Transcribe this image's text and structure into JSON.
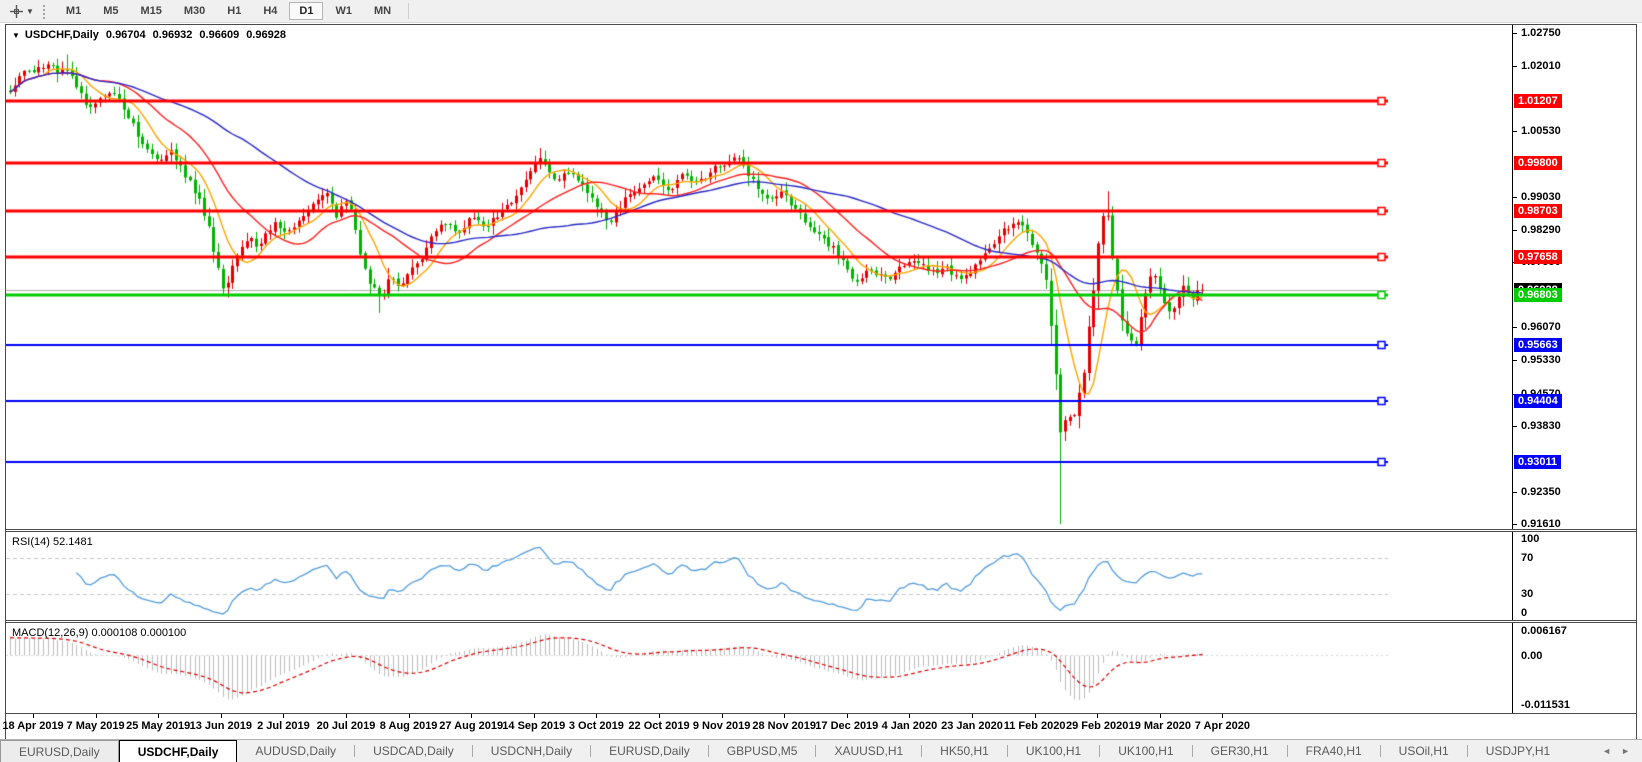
{
  "toolbar": {
    "timeframes": [
      "M1",
      "M5",
      "M15",
      "M30",
      "H1",
      "H4",
      "D1",
      "W1",
      "MN"
    ],
    "active_timeframe": "D1"
  },
  "chart": {
    "symbol": "USDCHF,Daily",
    "open": "0.96704",
    "high": "0.96932",
    "low": "0.96609",
    "close": "0.96928",
    "y_axis_labels": [
      {
        "text": "1.02750",
        "price": 1.0275
      },
      {
        "text": "1.02010",
        "price": 1.0201
      },
      {
        "text": "1.00530",
        "price": 1.0053
      },
      {
        "text": "0.99030",
        "price": 0.9903
      },
      {
        "text": "0.98290",
        "price": 0.9829
      },
      {
        "text": "0.97550",
        "price": 0.9755
      },
      {
        "text": "0.96070",
        "price": 0.9607
      },
      {
        "text": "0.95330",
        "price": 0.9533
      },
      {
        "text": "0.94570",
        "price": 0.9457
      },
      {
        "text": "0.93830",
        "price": 0.9383
      },
      {
        "text": "0.92350",
        "price": 0.9235
      },
      {
        "text": "0.91610",
        "price": 0.9161
      }
    ],
    "hlines": [
      {
        "label": "1.01207",
        "price": 1.01207,
        "color": "#ff0000",
        "width": 3
      },
      {
        "label": "0.99800",
        "price": 0.998,
        "color": "#ff0000",
        "width": 3
      },
      {
        "label": "0.98703",
        "price": 0.98703,
        "color": "#ff0000",
        "width": 3
      },
      {
        "label": "0.97658",
        "price": 0.97658,
        "color": "#ff0000",
        "width": 3
      },
      {
        "label": "0.96803",
        "price": 0.96803,
        "color": "#00cc00",
        "width": 3
      },
      {
        "label": "0.95663",
        "price": 0.95663,
        "color": "#0000ff",
        "width": 2
      },
      {
        "label": "0.94404",
        "price": 0.94404,
        "color": "#0000ff",
        "width": 2
      },
      {
        "label": "0.93011",
        "price": 0.93011,
        "color": "#0000ff",
        "width": 2
      }
    ],
    "bid": {
      "label": "0.96928",
      "price": 0.96928,
      "line_color": "#b0b0b0",
      "box_color": "#000000"
    },
    "dates": [
      "18 Apr 2019",
      "7 May 2019",
      "25 May 2019",
      "13 Jun 2019",
      "2 Jul 2019",
      "20 Jul 2019",
      "8 Aug 2019",
      "27 Aug 2019",
      "14 Sep 2019",
      "3 Oct 2019",
      "22 Oct 2019",
      "9 Nov 2019",
      "28 Nov 2019",
      "17 Dec 2019",
      "4 Jan 2020",
      "23 Jan 2020",
      "11 Feb 2020",
      "29 Feb 2020",
      "19 Mar 2020",
      "7 Apr 2020"
    ]
  },
  "rsi": {
    "label": "RSI(14) 52.1481",
    "axis_labels": [
      "100",
      "70",
      "30",
      "0"
    ],
    "levels": [
      70,
      30
    ],
    "line_color": "#559ddb",
    "current": 52.1481
  },
  "macd": {
    "label": "MACD(12,26,9) 0.000108 0.000100",
    "axis_top": "0.006167",
    "axis_zero": "0.00",
    "axis_bottom": "-0.011531",
    "hist_color": "#bdbdbd",
    "signal_color": "#e00000",
    "range_top": 0.0068,
    "range_bottom": -0.0122
  },
  "tabs": {
    "items": [
      "EURUSD,Daily",
      "USDCHF,Daily",
      "AUDUSD,Daily",
      "USDCAD,Daily",
      "USDCNH,Daily",
      "EURUSD,Daily",
      "GBPUSD,M5",
      "XAUUSD,H1",
      "HK50,H1",
      "UK100,H1",
      "UK100,H1",
      "GER30,H1",
      "FRA40,H1",
      "USOil,H1",
      "USDJPY,H1"
    ],
    "active_index": 1
  },
  "chart_data": {
    "type": "candlestick",
    "symbol": "USDCHF",
    "timeframe": "Daily",
    "bar_count": 253,
    "seed": 42,
    "noise": 0.0011,
    "wick": 0.0014,
    "last_close": 0.96928,
    "price_top": 1.0293,
    "price_bottom": 0.915,
    "up_color": "#e80000",
    "down_color": "#00b400",
    "close_path": [
      [
        0.0,
        1.014
      ],
      [
        0.01,
        1.0185
      ],
      [
        0.021,
        1.0195
      ],
      [
        0.032,
        1.0205
      ],
      [
        0.04,
        1.0185
      ],
      [
        0.048,
        1.02
      ],
      [
        0.056,
        1.015
      ],
      [
        0.066,
        1.01
      ],
      [
        0.075,
        1.0125
      ],
      [
        0.087,
        1.0145
      ],
      [
        0.1,
        1.008
      ],
      [
        0.11,
        1.0035
      ],
      [
        0.118,
        1.0
      ],
      [
        0.126,
        0.9985
      ],
      [
        0.134,
        1.0015
      ],
      [
        0.145,
        0.996
      ],
      [
        0.158,
        0.99
      ],
      [
        0.168,
        0.982
      ],
      [
        0.176,
        0.9715
      ],
      [
        0.181,
        0.969
      ],
      [
        0.188,
        0.976
      ],
      [
        0.199,
        0.9815
      ],
      [
        0.209,
        0.979
      ],
      [
        0.22,
        0.9845
      ],
      [
        0.231,
        0.982
      ],
      [
        0.241,
        0.9835
      ],
      [
        0.253,
        0.988
      ],
      [
        0.266,
        0.9912
      ],
      [
        0.274,
        0.986
      ],
      [
        0.282,
        0.9902
      ],
      [
        0.289,
        0.984
      ],
      [
        0.295,
        0.975
      ],
      [
        0.303,
        0.9705
      ],
      [
        0.311,
        0.9668
      ],
      [
        0.32,
        0.9725
      ],
      [
        0.328,
        0.97
      ],
      [
        0.339,
        0.9745
      ],
      [
        0.35,
        0.979
      ],
      [
        0.363,
        0.985
      ],
      [
        0.375,
        0.982
      ],
      [
        0.388,
        0.9858
      ],
      [
        0.4,
        0.983
      ],
      [
        0.413,
        0.987
      ],
      [
        0.427,
        0.9915
      ],
      [
        0.44,
        0.9975
      ],
      [
        0.446,
        0.999
      ],
      [
        0.456,
        0.9935
      ],
      [
        0.469,
        0.9962
      ],
      [
        0.481,
        0.9925
      ],
      [
        0.494,
        0.987
      ],
      [
        0.502,
        0.984
      ],
      [
        0.515,
        0.9895
      ],
      [
        0.527,
        0.9928
      ],
      [
        0.539,
        0.995
      ],
      [
        0.552,
        0.992
      ],
      [
        0.564,
        0.9952
      ],
      [
        0.577,
        0.9936
      ],
      [
        0.591,
        0.9965
      ],
      [
        0.604,
        0.9988
      ],
      [
        0.612,
        0.9998
      ],
      [
        0.624,
        0.993
      ],
      [
        0.635,
        0.9896
      ],
      [
        0.647,
        0.9918
      ],
      [
        0.66,
        0.987
      ],
      [
        0.672,
        0.9832
      ],
      [
        0.685,
        0.98
      ],
      [
        0.697,
        0.9762
      ],
      [
        0.71,
        0.9712
      ],
      [
        0.722,
        0.9736
      ],
      [
        0.734,
        0.9716
      ],
      [
        0.747,
        0.9742
      ],
      [
        0.759,
        0.9756
      ],
      [
        0.772,
        0.973
      ],
      [
        0.784,
        0.9746
      ],
      [
        0.797,
        0.9716
      ],
      [
        0.809,
        0.9745
      ],
      [
        0.822,
        0.979
      ],
      [
        0.834,
        0.983
      ],
      [
        0.846,
        0.9846
      ],
      [
        0.856,
        0.98
      ],
      [
        0.865,
        0.976
      ],
      [
        0.87,
        0.97
      ],
      [
        0.875,
        0.956
      ],
      [
        0.879,
        0.943
      ],
      [
        0.882,
        0.9345
      ],
      [
        0.886,
        0.942
      ],
      [
        0.891,
        0.938
      ],
      [
        0.896,
        0.9448
      ],
      [
        0.901,
        0.9515
      ],
      [
        0.907,
        0.965
      ],
      [
        0.913,
        0.98
      ],
      [
        0.919,
        0.9895
      ],
      [
        0.924,
        0.978
      ],
      [
        0.931,
        0.964
      ],
      [
        0.938,
        0.958
      ],
      [
        0.944,
        0.956
      ],
      [
        0.951,
        0.9675
      ],
      [
        0.958,
        0.9745
      ],
      [
        0.964,
        0.97
      ],
      [
        0.971,
        0.9632
      ],
      [
        0.978,
        0.966
      ],
      [
        0.984,
        0.97
      ],
      [
        0.991,
        0.9678
      ],
      [
        1.0,
        0.9693
      ]
    ],
    "spikes": [
      {
        "t": 0.882,
        "low": 0.9161
      },
      {
        "t": 0.048,
        "high": 1.0226
      },
      {
        "t": 0.446,
        "high": 1.0014
      },
      {
        "t": 0.919,
        "high": 0.9916
      },
      {
        "t": 0.311,
        "low": 0.964
      },
      {
        "t": 0.181,
        "low": 0.9675
      }
    ],
    "moving_averages": [
      {
        "period": 8,
        "color": "#ffa500"
      },
      {
        "period": 20,
        "color": "#ff2020"
      },
      {
        "period": 50,
        "color": "#2a2ac8"
      }
    ],
    "macd_seed_offset": 0.004
  }
}
